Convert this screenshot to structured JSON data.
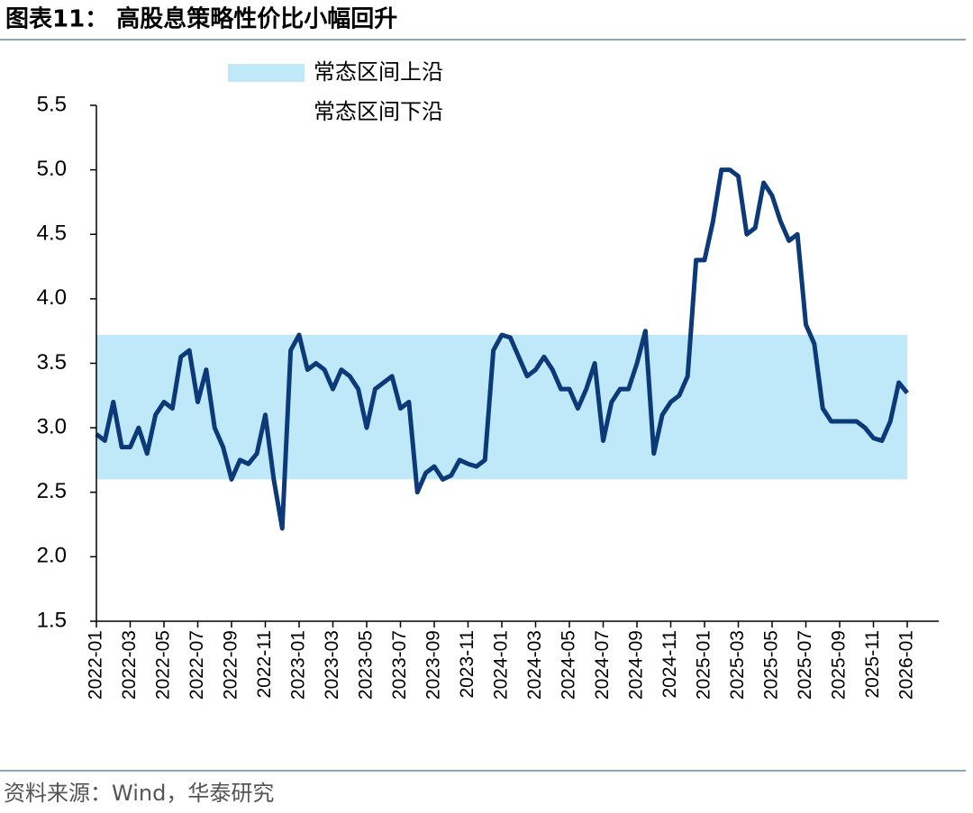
{
  "title": "图表11：  高股息策略性价比小幅回升",
  "source": "资料来源：Wind，华泰研究",
  "chart_data": {
    "type": "line",
    "legend": "top",
    "categories": [
      "2022-01",
      null,
      null,
      null,
      "2022-03",
      null,
      null,
      null,
      "2022-05",
      null,
      null,
      null,
      "2022-07",
      null,
      null,
      null,
      "2022-09",
      null,
      null,
      null,
      "2022-11",
      null,
      null,
      null,
      "2023-01",
      null,
      null,
      null,
      "2023-03",
      null,
      null,
      null,
      "2023-05",
      null,
      null,
      null,
      "2023-07",
      null,
      null,
      null,
      "2023-09",
      null,
      null,
      null,
      "2023-11",
      null,
      null,
      null,
      "2024-01",
      null,
      null,
      null,
      "2024-03",
      null,
      null,
      null,
      "2024-05",
      null,
      null,
      null,
      "2024-07",
      null,
      null,
      null,
      "2024-09",
      null,
      null,
      null,
      "2024-11",
      null,
      null,
      null,
      "2025-01",
      null,
      null,
      null,
      "2025-03",
      null,
      null,
      null,
      "2025-05",
      null,
      null,
      null,
      "2025-07",
      null,
      null,
      null,
      "2025-09",
      null,
      null,
      null,
      "2025-11",
      null,
      null,
      null,
      "2026-01"
    ],
    "ylim": [
      1.5,
      5.5
    ],
    "yticks": [
      {
        "value": 1.5,
        "label": "1.5"
      },
      {
        "value": 2,
        "label": "2.0"
      },
      {
        "value": 2.5,
        "label": "2.5"
      },
      {
        "value": 3,
        "label": "3.0"
      },
      {
        "value": 3.5,
        "label": "3.5"
      },
      {
        "value": 4,
        "label": "4.0"
      },
      {
        "value": 4.5,
        "label": "4.5"
      },
      {
        "value": 5,
        "label": "5.0"
      },
      {
        "value": 5.5,
        "label": "5.5"
      }
    ],
    "series": [
      {
        "name": "常态区间上沿",
        "color": "#bfe8f8",
        "kind": "area",
        "values": [
          3.72,
          3.72,
          3.72,
          3.72,
          3.72,
          3.72,
          3.72,
          3.72,
          3.72,
          3.72,
          3.72,
          3.72,
          3.72,
          3.72,
          3.72,
          3.72,
          3.72,
          3.72,
          3.72,
          3.72,
          3.72,
          3.72,
          3.72,
          3.72,
          3.72,
          3.72,
          3.72,
          3.72,
          3.72,
          3.72,
          3.72,
          3.72,
          3.72,
          3.72,
          3.72,
          3.72,
          3.72,
          3.72,
          3.72,
          3.72,
          3.72,
          3.72,
          3.72,
          3.72,
          3.72,
          3.72,
          3.72,
          3.72,
          3.72,
          3.72,
          3.72,
          3.72,
          3.72,
          3.72,
          3.72,
          3.72,
          3.72,
          3.72,
          3.72,
          3.72,
          3.72,
          3.72,
          3.72,
          3.72,
          3.72,
          3.72,
          3.72,
          3.72,
          3.72,
          3.72,
          3.72,
          3.72,
          3.72,
          3.72,
          3.72,
          3.72,
          3.72,
          3.72,
          3.72,
          3.72,
          3.72,
          3.72,
          3.72,
          3.72,
          3.72,
          3.72,
          3.72,
          3.72,
          3.72,
          3.72,
          3.72,
          3.72,
          3.72,
          3.72,
          3.72,
          3.72,
          3.72
        ]
      },
      {
        "name": "常态区间下沿",
        "color": "#ffffff",
        "kind": "area",
        "values": [
          2.6,
          2.6,
          2.6,
          2.6,
          2.6,
          2.6,
          2.6,
          2.6,
          2.6,
          2.6,
          2.6,
          2.6,
          2.6,
          2.6,
          2.6,
          2.6,
          2.6,
          2.6,
          2.6,
          2.6,
          2.6,
          2.6,
          2.6,
          2.6,
          2.6,
          2.6,
          2.6,
          2.6,
          2.6,
          2.6,
          2.6,
          2.6,
          2.6,
          2.6,
          2.6,
          2.6,
          2.6,
          2.6,
          2.6,
          2.6,
          2.6,
          2.6,
          2.6,
          2.6,
          2.6,
          2.6,
          2.6,
          2.6,
          2.6,
          2.6,
          2.6,
          2.6,
          2.6,
          2.6,
          2.6,
          2.6,
          2.6,
          2.6,
          2.6,
          2.6,
          2.6,
          2.6,
          2.6,
          2.6,
          2.6,
          2.6,
          2.6,
          2.6,
          2.6,
          2.6,
          2.6,
          2.6,
          2.6,
          2.6,
          2.6,
          2.6,
          2.6,
          2.6,
          2.6,
          2.6,
          2.6,
          2.6,
          2.6,
          2.6,
          2.6,
          2.6,
          2.6,
          2.6,
          2.6,
          2.6,
          2.6,
          2.6,
          2.6,
          2.6,
          2.6,
          2.6,
          2.6
        ]
      },
      {
        "color": "#0c3978",
        "kind": "line",
        "values": [
          2.95,
          2.9,
          3.2,
          2.85,
          2.85,
          3.0,
          2.8,
          3.1,
          3.2,
          3.15,
          3.55,
          3.6,
          3.2,
          3.45,
          3.0,
          2.85,
          2.6,
          2.75,
          2.72,
          2.8,
          3.1,
          2.6,
          2.22,
          3.6,
          3.72,
          3.45,
          3.5,
          3.45,
          3.3,
          3.45,
          3.4,
          3.3,
          3.0,
          3.3,
          3.35,
          3.4,
          3.15,
          3.2,
          2.5,
          2.65,
          2.7,
          2.6,
          2.63,
          2.75,
          2.72,
          2.7,
          2.75,
          3.6,
          3.72,
          3.7,
          3.55,
          3.4,
          3.45,
          3.55,
          3.45,
          3.3,
          3.3,
          3.15,
          3.3,
          3.5,
          2.9,
          3.2,
          3.3,
          3.3,
          3.5,
          3.75,
          2.8,
          3.1,
          3.2,
          3.25,
          3.4,
          4.3,
          4.3,
          4.6,
          5.0,
          5.0,
          4.95,
          4.5,
          4.55,
          4.9,
          4.8,
          4.6,
          4.45,
          4.5,
          3.8,
          3.65,
          3.15,
          3.05,
          3.05,
          3.05,
          3.05,
          3.0,
          2.92,
          2.9,
          3.05,
          3.35,
          3.27
        ]
      }
    ]
  }
}
